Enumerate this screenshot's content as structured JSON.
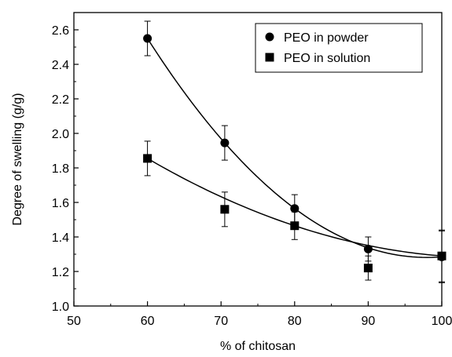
{
  "chart_data": {
    "type": "scatter",
    "title": "",
    "xlabel": "% of chitosan",
    "ylabel": "Degree of swelling (g/g)",
    "xlim": [
      50,
      100
    ],
    "ylim": [
      1.0,
      2.7
    ],
    "x_ticks": [
      "50",
      "60",
      "70",
      "80",
      "90",
      "100"
    ],
    "y_ticks": [
      "1.0",
      "1.2",
      "1.4",
      "1.6",
      "1.8",
      "2.0",
      "2.2",
      "2.4",
      "2.6"
    ],
    "grid": false,
    "legend_position": "top-right",
    "series": [
      {
        "name": "PEO in powder",
        "marker": "circle",
        "color": "#000000",
        "x": [
          60,
          70.5,
          80,
          90,
          100
        ],
        "y": [
          2.55,
          1.945,
          1.565,
          1.33,
          1.285
        ],
        "error": [
          0.1,
          0.1,
          0.08,
          0.07,
          0.15
        ],
        "fit": "smooth"
      },
      {
        "name": "PEO in solution",
        "marker": "square",
        "color": "#000000",
        "x": [
          60,
          70.5,
          80,
          90,
          100
        ],
        "y": [
          1.855,
          1.56,
          1.465,
          1.22,
          1.29
        ],
        "error": [
          0.1,
          0.1,
          0.08,
          0.07,
          0.15
        ],
        "fit": "smooth"
      }
    ]
  }
}
